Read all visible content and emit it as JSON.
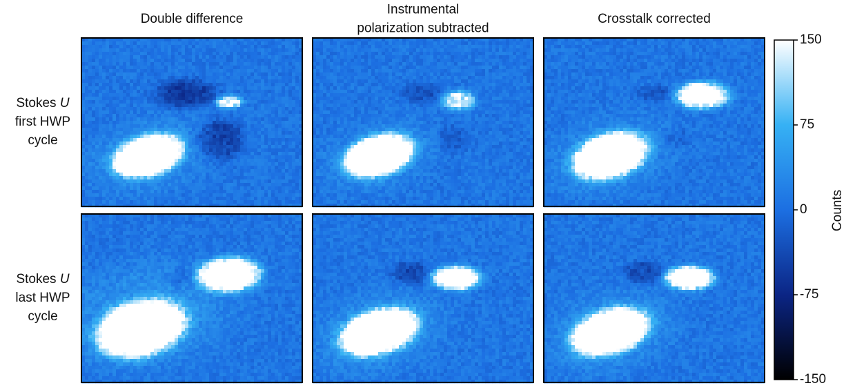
{
  "chart_data": {
    "type": "image-grid",
    "column_titles": [
      [
        "Double difference"
      ],
      [
        "Instrumental",
        "polarization subtracted"
      ],
      [
        "Crosstalk corrected"
      ]
    ],
    "row_labels": [
      {
        "prefix": "Stokes",
        "symbol": "U",
        "rest": [
          "first HWP",
          "cycle"
        ]
      },
      {
        "prefix": "Stokes",
        "symbol": "U",
        "rest": [
          "last HWP",
          "cycle"
        ]
      }
    ],
    "colorbar": {
      "label": "Counts",
      "lim": [
        -150,
        150
      ],
      "ticks": [
        150,
        75,
        0,
        -75,
        -150
      ]
    }
  }
}
